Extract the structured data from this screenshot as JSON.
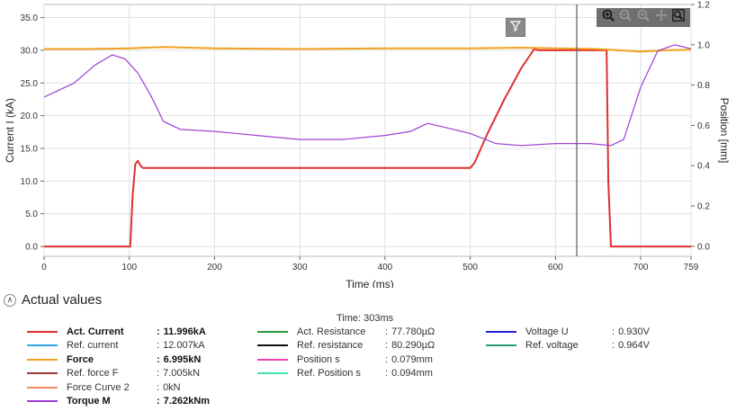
{
  "chart_data": {
    "type": "line",
    "xlabel": "Time (ms)",
    "ylabel_left": "Current I (kA)",
    "ylabel_right": "Position [mm]",
    "xlim": [
      0,
      759
    ],
    "ylim_left": [
      -1.5,
      37
    ],
    "ylim_right": [
      -0.05,
      1.2
    ],
    "x_ticks": [
      0,
      100,
      200,
      300,
      400,
      500,
      600,
      700,
      759
    ],
    "y_left_ticks": [
      0.0,
      5.0,
      10.0,
      15.0,
      20.0,
      25.0,
      30.0,
      35.0
    ],
    "y_left_tick_labels": [
      "0.0",
      "5.0",
      "10.0",
      "15.0",
      "20.0",
      "25.0",
      "30.0",
      "35.0"
    ],
    "y_right_ticks": [
      0.0,
      0.2,
      0.4,
      0.6,
      0.8,
      1.0,
      1.2
    ],
    "y_right_tick_labels": [
      "0.0",
      "0.2",
      "0.4",
      "0.6",
      "0.8",
      "1.0",
      "1.2"
    ],
    "grid": true,
    "cursor_x": 625,
    "series": [
      {
        "name": "Act. Current",
        "axis": "left",
        "color": "#e03030",
        "x": [
          0,
          101,
          104,
          107,
          110,
          113,
          116,
          120,
          200,
          300,
          400,
          500,
          505,
          520,
          540,
          560,
          575,
          580,
          600,
          620,
          660,
          662,
          665,
          700,
          759
        ],
        "y": [
          0.0,
          0.0,
          8.0,
          12.6,
          13.1,
          12.4,
          12.0,
          12.0,
          12.0,
          12.0,
          12.0,
          12.0,
          12.8,
          17.2,
          22.5,
          27.3,
          30.2,
          30.0,
          30.0,
          30.0,
          30.0,
          10.0,
          0.0,
          0.0,
          0.0
        ]
      },
      {
        "name": "Force",
        "axis": "left",
        "color": "#f0a020",
        "x": [
          0,
          50,
          100,
          140,
          200,
          300,
          400,
          500,
          560,
          600,
          650,
          700,
          730,
          759
        ],
        "y": [
          30.2,
          30.2,
          30.3,
          30.5,
          30.3,
          30.2,
          30.3,
          30.3,
          30.4,
          30.3,
          30.2,
          29.8,
          30.0,
          30.1
        ]
      },
      {
        "name": "Torque M",
        "axis": "right",
        "color": "#a040d0",
        "x": [
          0,
          15,
          35,
          60,
          80,
          95,
          110,
          125,
          140,
          160,
          200,
          250,
          300,
          350,
          400,
          430,
          450,
          470,
          500,
          530,
          560,
          600,
          640,
          665,
          680,
          700,
          720,
          740,
          759
        ],
        "y": [
          0.74,
          0.77,
          0.81,
          0.9,
          0.95,
          0.93,
          0.86,
          0.75,
          0.62,
          0.58,
          0.57,
          0.55,
          0.53,
          0.53,
          0.55,
          0.57,
          0.61,
          0.59,
          0.56,
          0.51,
          0.5,
          0.51,
          0.51,
          0.5,
          0.53,
          0.79,
          0.97,
          1.0,
          0.98
        ]
      }
    ]
  },
  "section": {
    "title": "Actual values",
    "time_readout": "Time: 303ms"
  },
  "legend": {
    "col1": [
      {
        "name": "Act. Current",
        "value": "11.996kA",
        "color": "#e03030",
        "bold": true
      },
      {
        "name": "Ref. current",
        "value": "12.007kA",
        "color": "#30a8e0",
        "bold": false
      },
      {
        "name": "Force",
        "value": "6.995kN",
        "color": "#f0a020",
        "bold": true
      },
      {
        "name": "Ref. force F",
        "value": "7.005kN",
        "color": "#9a3a3a",
        "bold": false
      },
      {
        "name": "Force Curve 2",
        "value": "0kN",
        "color": "#f08a60",
        "bold": false
      },
      {
        "name": "Torque M",
        "value": "7.262kNm",
        "color": "#a040d0",
        "bold": true
      }
    ],
    "col2": [
      {
        "name": "Act. Resistance",
        "value": "77.780µΩ",
        "color": "#2a9a3a"
      },
      {
        "name": "Ref. resistance",
        "value": "80.290µΩ",
        "color": "#111111"
      },
      {
        "name": "Position s",
        "value": "0.079mm",
        "color": "#f040b0"
      },
      {
        "name": "Ref. Position s",
        "value": "0.094mm",
        "color": "#40e0b0"
      }
    ],
    "col3": [
      {
        "name": "Voltage U",
        "value": "0.930V",
        "color": "#2020d0"
      },
      {
        "name": "Ref. voltage",
        "value": "0.964V",
        "color": "#2a9a7a"
      }
    ]
  },
  "toolbar": {
    "icons": [
      "zoom-in-icon",
      "zoom-out-icon",
      "zoom-reset-icon",
      "pan-icon",
      "zoom-area-icon"
    ],
    "filter_icon": "filter-icon"
  }
}
